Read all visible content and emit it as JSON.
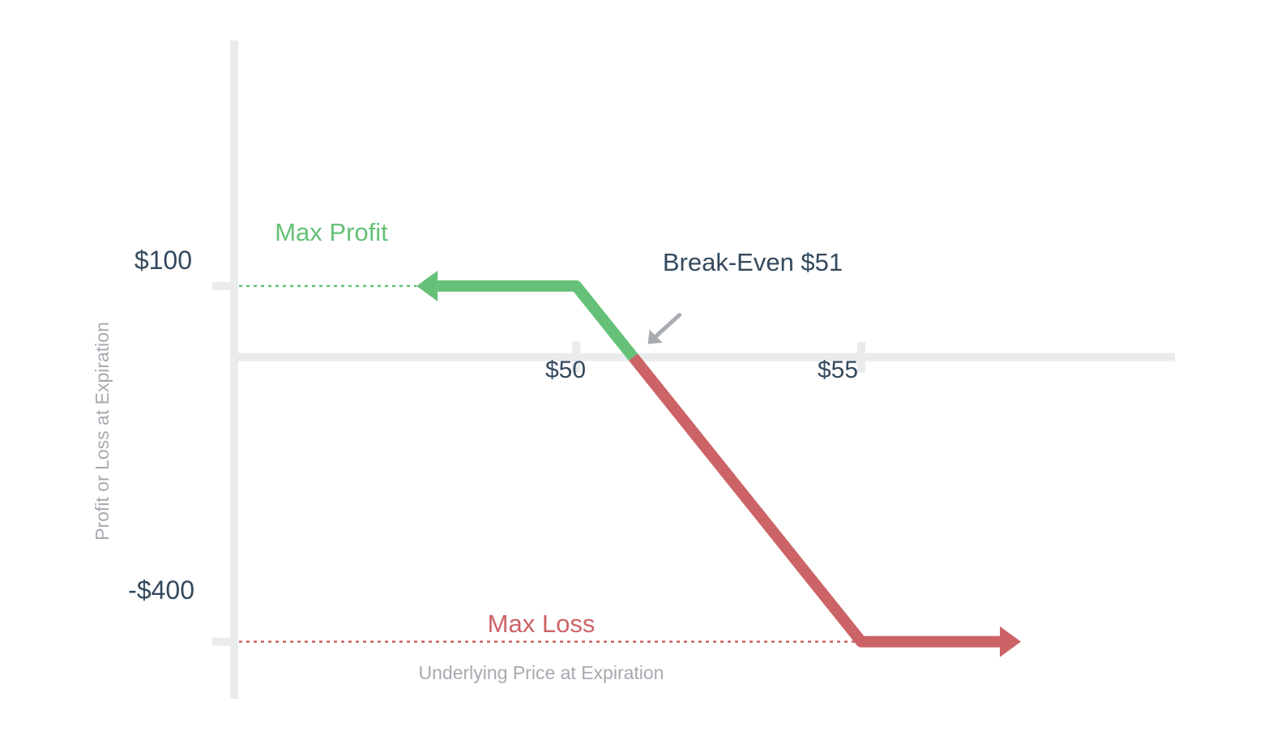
{
  "chart_data": {
    "type": "line",
    "title": "",
    "xlabel": "Underlying Price at Expiration",
    "ylabel": "Profit or Loss at Expiration",
    "x_ticks": [
      {
        "value": 50,
        "label": "$50"
      },
      {
        "value": 55,
        "label": "$55"
      }
    ],
    "y_ticks": [
      {
        "value": 100,
        "label": "$100"
      },
      {
        "value": -400,
        "label": "-$400"
      }
    ],
    "xlim": [
      44,
      60.5
    ],
    "ylim": [
      -480,
      445
    ],
    "payoff": [
      {
        "x": 47.2,
        "y": 100
      },
      {
        "x": 50,
        "y": 100
      },
      {
        "x": 51,
        "y": 0
      },
      {
        "x": 55,
        "y": -400
      },
      {
        "x": 57.8,
        "y": -400
      }
    ],
    "breakeven": 51,
    "annotations": {
      "max_profit": "Max Profit",
      "max_loss": "Max Loss",
      "breakeven": "Break-Even $51"
    },
    "colors": {
      "profit": "#65c178",
      "loss": "#cc6366",
      "axis": "#eaebec",
      "text_dark": "#34495e",
      "text_muted": "#a6aab0",
      "arrow": "#a9adb2"
    }
  }
}
